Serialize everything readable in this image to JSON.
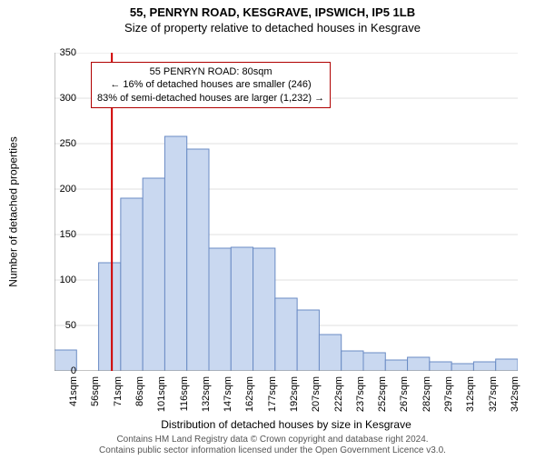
{
  "title": "55, PENRYN ROAD, KESGRAVE, IPSWICH, IP5 1LB",
  "subtitle": "Size of property relative to detached houses in Kesgrave",
  "y_axis": {
    "label": "Number of detached properties",
    "min": 0,
    "max": 350,
    "tick_step": 50,
    "ticks": [
      0,
      50,
      100,
      150,
      200,
      250,
      300,
      350
    ]
  },
  "x_axis": {
    "label": "Distribution of detached houses by size in Kesgrave",
    "tick_labels": [
      "41sqm",
      "56sqm",
      "71sqm",
      "86sqm",
      "101sqm",
      "116sqm",
      "132sqm",
      "147sqm",
      "162sqm",
      "177sqm",
      "192sqm",
      "207sqm",
      "222sqm",
      "237sqm",
      "252sqm",
      "267sqm",
      "282sqm",
      "297sqm",
      "312sqm",
      "327sqm",
      "342sqm"
    ]
  },
  "histogram": {
    "type": "histogram",
    "values": [
      23,
      0,
      119,
      190,
      212,
      258,
      244,
      135,
      136,
      135,
      80,
      67,
      40,
      22,
      20,
      12,
      15,
      10,
      8,
      10,
      13
    ],
    "bar_fill": "#c9d8f0",
    "bar_stroke": "#6a8bc4",
    "bar_stroke_width": 1
  },
  "marker_line": {
    "x_value_sqm": 80,
    "color": "#d00000",
    "width": 2
  },
  "annotation": {
    "line1": "55 PENRYN ROAD: 80sqm",
    "line2": "← 16% of detached houses are smaller (246)",
    "line3": "83% of semi-detached houses are larger (1,232) →",
    "border_color": "#b00000",
    "bg_color": "#ffffff"
  },
  "plot_style": {
    "background": "#ffffff",
    "grid_color": "#c0c0c0",
    "axis_color": "#888888",
    "grid_width": 0.5,
    "tick_font_size": 11,
    "label_font_size": 12,
    "title_font_size": 13
  },
  "footer": {
    "line1": "Contains HM Land Registry data © Crown copyright and database right 2024.",
    "line2": "Contains public sector information licensed under the Open Government Licence v3.0."
  }
}
